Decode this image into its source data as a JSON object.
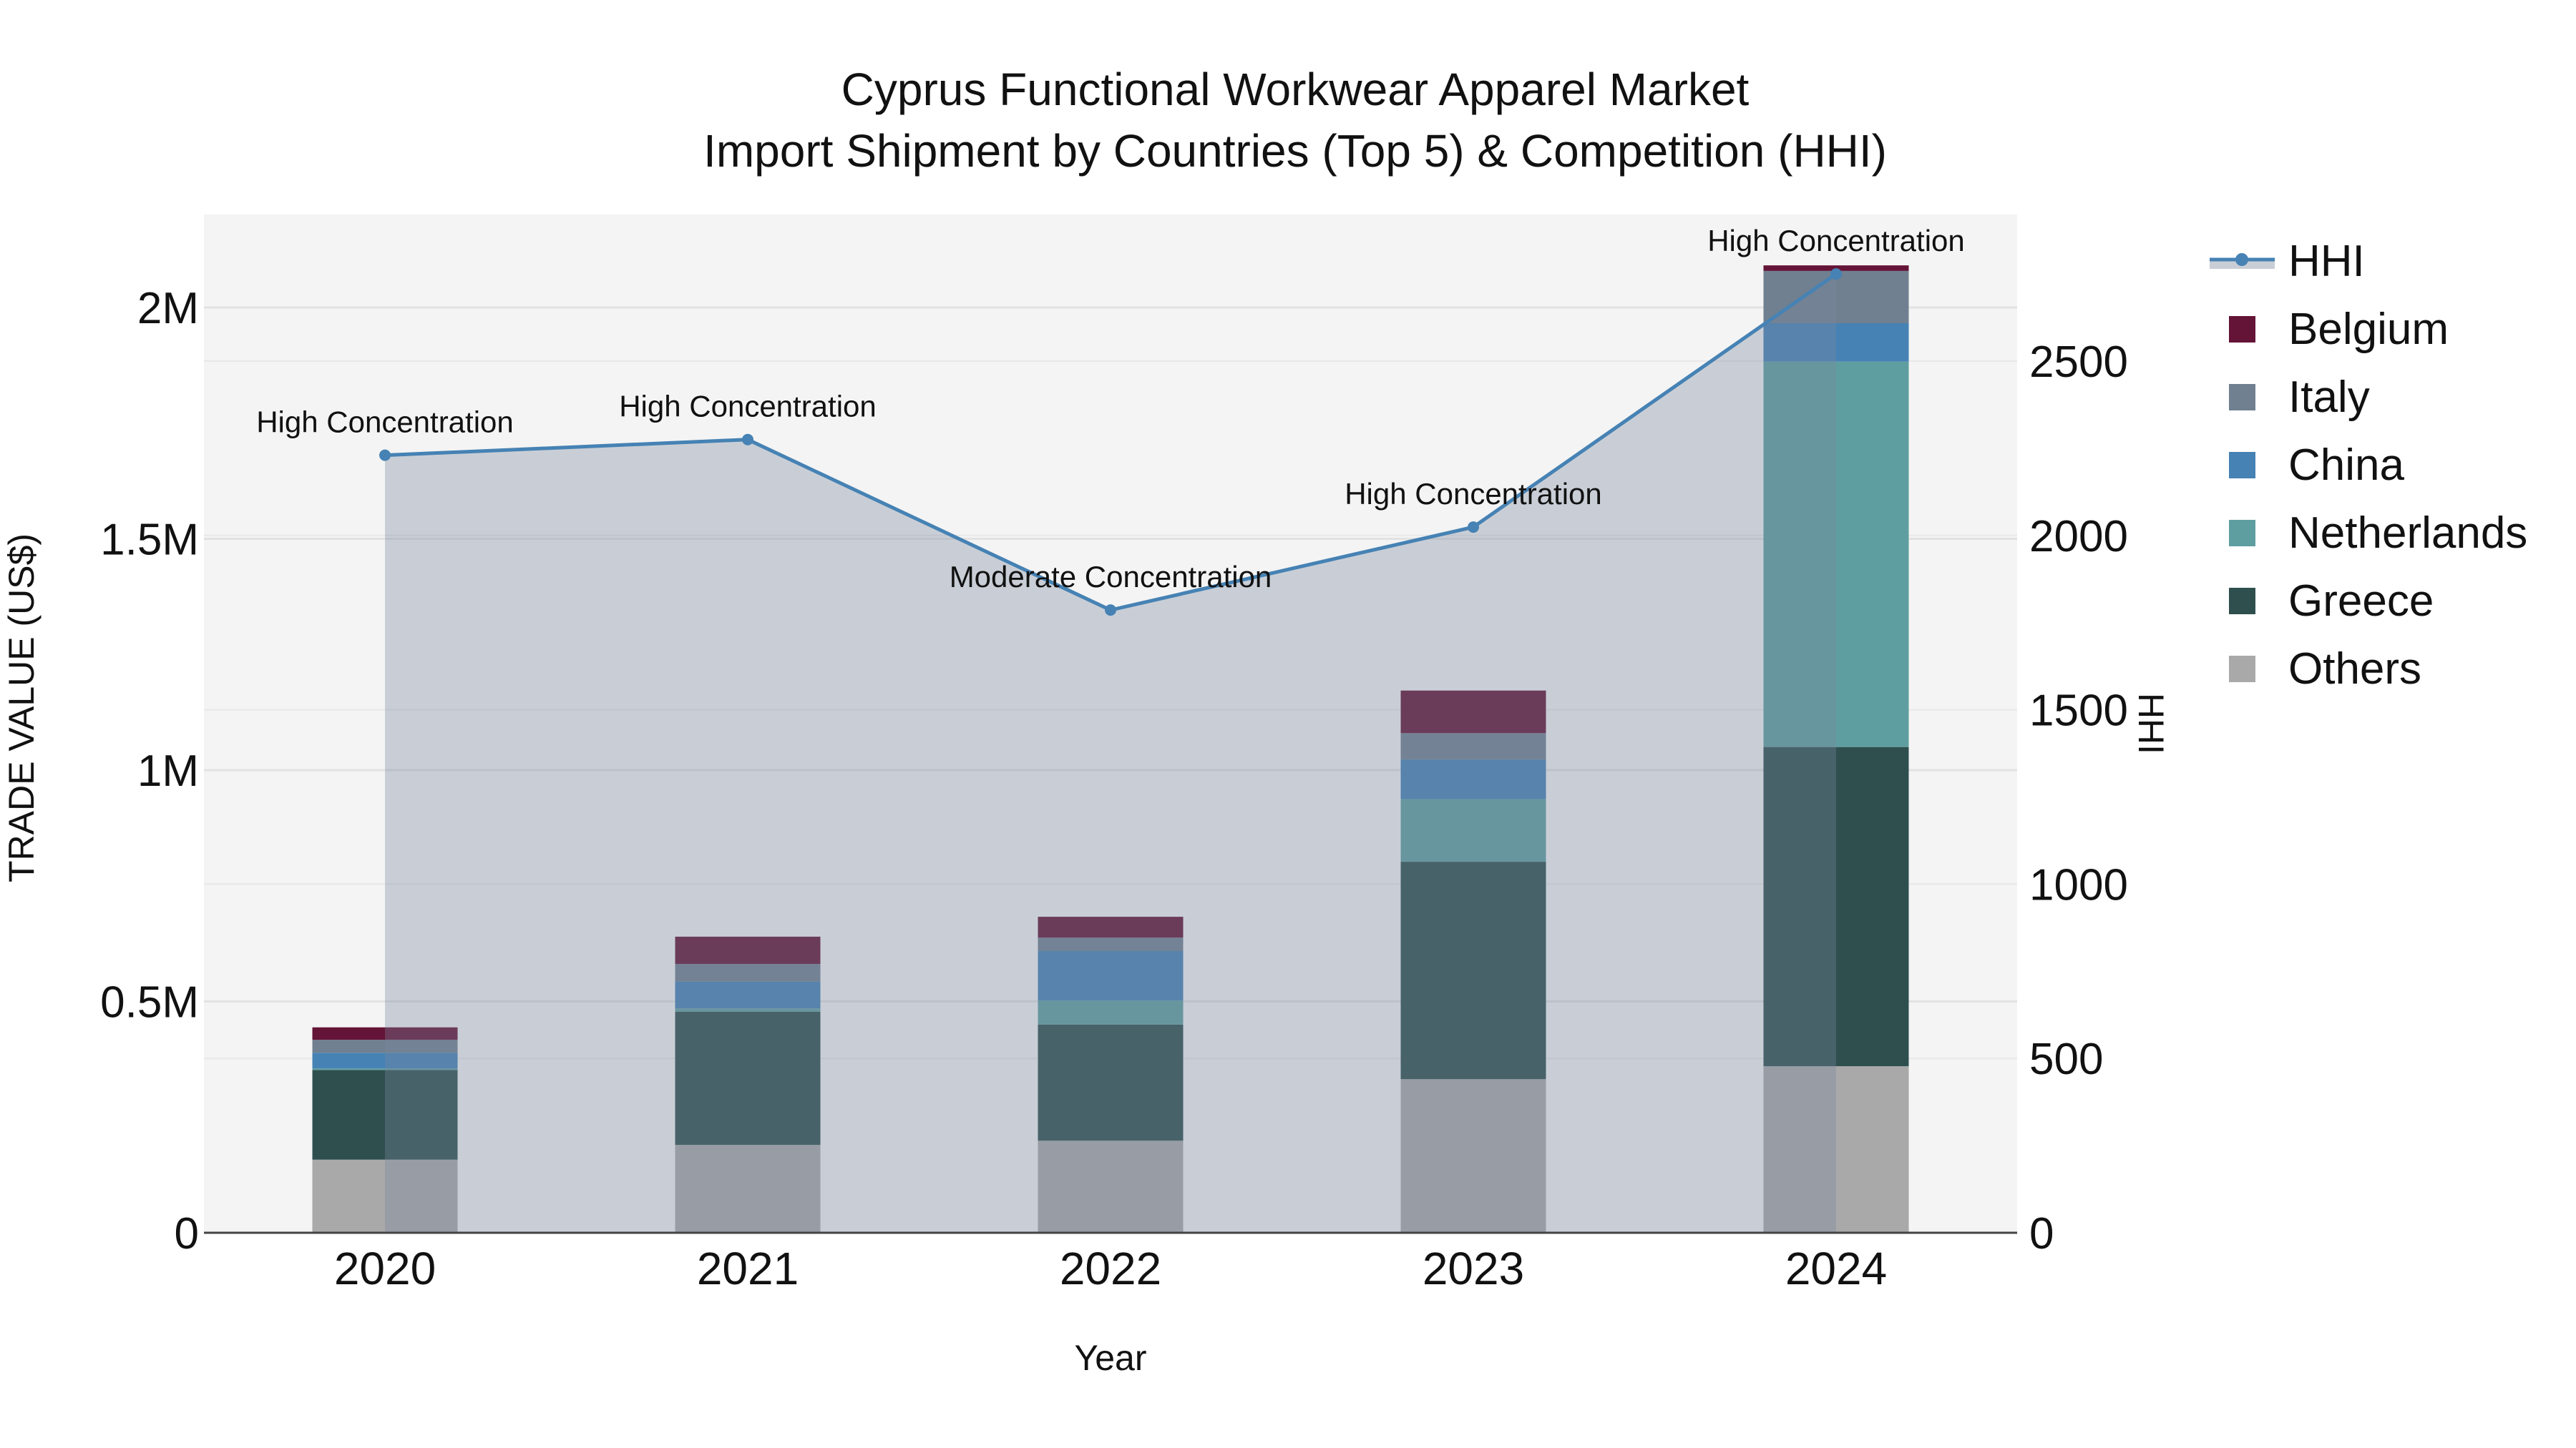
{
  "title": {
    "line1": "Cyprus Functional Workwear Apparel Market",
    "line2": "Import Shipment by Countries (Top 5) & Competition (HHI)"
  },
  "axes": {
    "x_title": "Year",
    "y_left_title": "TRADE VALUE (US$)",
    "y_right_title": "HHI",
    "y_left_ticks": [
      "0",
      "0.5M",
      "1M",
      "1.5M",
      "2M"
    ],
    "y_right_ticks": [
      "0",
      "500",
      "1000",
      "1500",
      "2000",
      "2500"
    ]
  },
  "legend": {
    "items": [
      {
        "label": "HHI",
        "type": "line",
        "color": "#4682B4"
      },
      {
        "label": "Belgium",
        "type": "bar",
        "color": "#641437"
      },
      {
        "label": "Italy",
        "type": "bar",
        "color": "#708090"
      },
      {
        "label": "China",
        "type": "bar",
        "color": "#4682B4"
      },
      {
        "label": "Netherlands",
        "type": "bar",
        "color": "#5F9EA0"
      },
      {
        "label": "Greece",
        "type": "bar",
        "color": "#2F4F4F"
      },
      {
        "label": "Others",
        "type": "bar",
        "color": "#A9A9A9"
      }
    ]
  },
  "chart_data": {
    "type": "bar",
    "title": "Cyprus Functional Workwear Apparel Market - Import Shipment by Countries (Top 5) & Competition (HHI)",
    "xlabel": "Year",
    "ylabel": "TRADE VALUE (US$)",
    "y2label": "HHI",
    "categories": [
      "2020",
      "2021",
      "2022",
      "2023",
      "2024"
    ],
    "ylim": [
      0,
      2200000
    ],
    "y2lim": [
      0,
      2870
    ],
    "stacked": true,
    "series": [
      {
        "name": "Others",
        "color": "#A9A9A9",
        "values": [
          158000,
          190000,
          199000,
          332000,
          360000
        ]
      },
      {
        "name": "Greece",
        "color": "#2F4F4F",
        "values": [
          194000,
          288000,
          251000,
          470000,
          690000
        ]
      },
      {
        "name": "Netherlands",
        "color": "#5F9EA0",
        "values": [
          3000,
          7000,
          52000,
          135000,
          833000
        ]
      },
      {
        "name": "China",
        "color": "#4682B4",
        "values": [
          34000,
          58000,
          107000,
          86000,
          83000
        ]
      },
      {
        "name": "Italy",
        "color": "#708090",
        "values": [
          28000,
          38000,
          29000,
          57000,
          113000
        ]
      },
      {
        "name": "Belgium",
        "color": "#641437",
        "values": [
          27000,
          59000,
          45000,
          92000,
          12000
        ]
      }
    ],
    "line_series": {
      "name": "HHI",
      "axis": "right",
      "color": "#4682B4",
      "fill": "tozeroy",
      "values": [
        2230,
        2275,
        1786,
        2024,
        2750
      ]
    },
    "annotations": [
      {
        "x": "2020",
        "text": "High Concentration"
      },
      {
        "x": "2021",
        "text": "High Concentration"
      },
      {
        "x": "2022",
        "text": "Moderate Concentration"
      },
      {
        "x": "2023",
        "text": "High Concentration"
      },
      {
        "x": "2024",
        "text": "High Concentration"
      }
    ],
    "grid": true,
    "legend_position": "right"
  }
}
